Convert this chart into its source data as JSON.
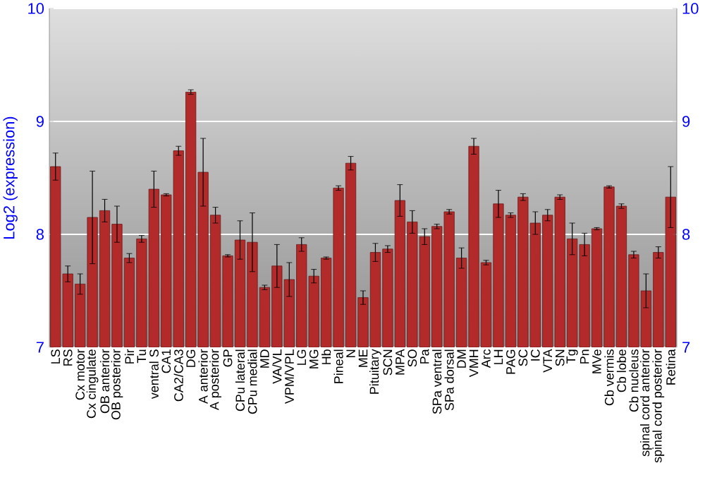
{
  "chart_data": {
    "type": "bar",
    "ylabel": "Log2 (expression)",
    "categories": [
      "LS",
      "RS",
      "Cx motor",
      "Cx cingulate",
      "OB anterior",
      "OB posterior",
      "Pir",
      "Tu",
      "ventral S",
      "CA1",
      "CA2/CA3",
      "DG",
      "A anterior",
      "A posterior",
      "GP",
      "CPu lateral",
      "CPu medial",
      "MD",
      "VA/VL",
      "VPM/VPL",
      "LG",
      "MG",
      "Hb",
      "Pineal",
      "N",
      "ME",
      "Pituitary",
      "SCN",
      "MPA",
      "SO",
      "Pa",
      "SPa ventral",
      "SPa dorsal",
      "DM",
      "VMH",
      "Arc",
      "LH",
      "PAG",
      "SC",
      "IC",
      "VTA",
      "SN",
      "Tg",
      "Pn",
      "MVe",
      "Cb vermis",
      "Cb lobe",
      "Cb nucleus",
      "spinal cord anterior",
      "spinal cord posterior",
      "Retina"
    ],
    "values": [
      8.6,
      7.65,
      7.56,
      8.15,
      8.21,
      8.09,
      7.79,
      7.96,
      8.4,
      8.35,
      8.74,
      9.26,
      8.55,
      8.17,
      7.81,
      7.95,
      7.93,
      7.53,
      7.72,
      7.6,
      7.91,
      7.63,
      7.79,
      8.41,
      8.63,
      7.44,
      7.84,
      7.87,
      8.3,
      8.11,
      7.98,
      8.07,
      8.2,
      7.79,
      8.78,
      7.75,
      8.27,
      8.17,
      8.33,
      8.1,
      8.17,
      8.33,
      7.96,
      7.91,
      8.05,
      8.42,
      8.25,
      7.82,
      7.5,
      7.84,
      8.33
    ],
    "errors": [
      0.12,
      0.07,
      0.09,
      0.41,
      0.1,
      0.16,
      0.04,
      0.03,
      0.16,
      0.01,
      0.04,
      0.02,
      0.3,
      0.07,
      0.01,
      0.17,
      0.26,
      0.02,
      0.19,
      0.15,
      0.06,
      0.06,
      0.01,
      0.02,
      0.06,
      0.06,
      0.08,
      0.03,
      0.14,
      0.1,
      0.07,
      0.02,
      0.02,
      0.09,
      0.07,
      0.02,
      0.12,
      0.02,
      0.03,
      0.1,
      0.05,
      0.02,
      0.14,
      0.1,
      0.01,
      0.01,
      0.02,
      0.03,
      0.15,
      0.05,
      0.27
    ],
    "color": "#b22a2a",
    "ylim": [
      7,
      10
    ],
    "yticks": [
      7,
      8,
      9,
      10
    ],
    "y2lim": [
      7,
      10
    ],
    "y2ticks": [
      7,
      8,
      9,
      10
    ],
    "grid": "y"
  }
}
